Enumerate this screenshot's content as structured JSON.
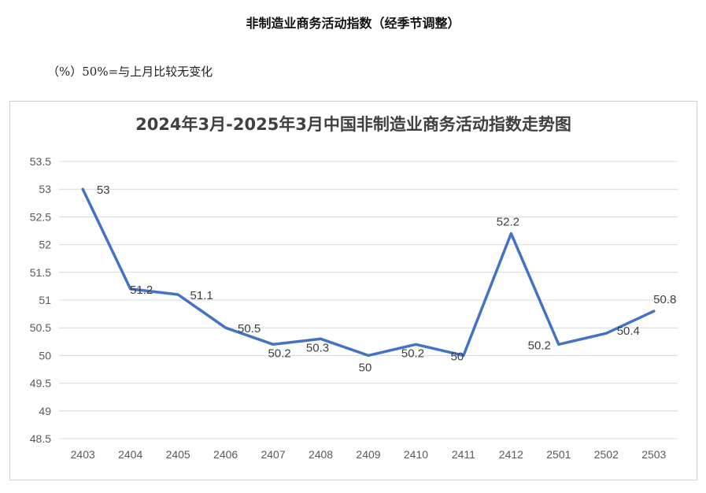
{
  "page": {
    "title": "非制造业商务活动指数（经季节调整）",
    "unit_note": "（%）50%=与上月比较无变化"
  },
  "chart_data": {
    "type": "line",
    "title": "2024年3月-2025年3月中国非制造业商务活动指数走势图",
    "xlabel": "",
    "ylabel": "",
    "categories": [
      "2403",
      "2404",
      "2405",
      "2406",
      "2407",
      "2408",
      "2409",
      "2410",
      "2411",
      "2412",
      "2501",
      "2502",
      "2503"
    ],
    "values": [
      53,
      51.2,
      51.1,
      50.5,
      50.2,
      50.3,
      50,
      50.2,
      50,
      52.2,
      50.2,
      50.4,
      50.8
    ],
    "data_labels": [
      "53",
      "51.2",
      "51.1",
      "50.5",
      "50.2",
      "50.3",
      "50",
      "50.2",
      "50",
      "52.2",
      "50.2",
      "50.4",
      "50.8"
    ],
    "ylim": [
      48.5,
      53.5
    ],
    "yticks": [
      "48.5",
      "49",
      "49.5",
      "50",
      "50.5",
      "51",
      "51.5",
      "52",
      "52.5",
      "53",
      "53.5"
    ],
    "grid": true,
    "legend": "none",
    "line_color": "#4472C4",
    "grid_color": "#d9d9d9"
  }
}
